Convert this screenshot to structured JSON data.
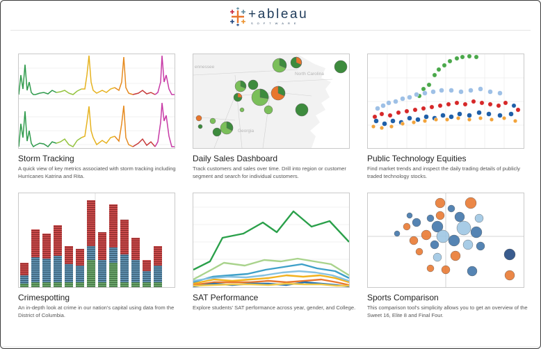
{
  "brand": {
    "name": "+ableau",
    "subtitle": "SOFTWARE",
    "colors": [
      "#e8762d",
      "#c72037",
      "#5b879b",
      "#1f457e",
      "#59879b",
      "#eb912b"
    ]
  },
  "gallery": [
    {
      "title": "Storm Tracking",
      "description": "A quick view of key metrics associated with storm tracking including Hurricanes Katrina and Rita."
    },
    {
      "title": "Daily Sales Dashboard",
      "description": "Track customers and sales over time. Drill into region or customer segment and search for individual customers.",
      "map_labels": [
        "ennessee",
        "North Carolina",
        "Georgia"
      ]
    },
    {
      "title": "Public Technology Equities",
      "description": "Find market trends and inspect the daily trading details of publicly traded technology stocks."
    },
    {
      "title": "Crimespotting",
      "description": "An in-depth look at crime in our nation's capital using data from the District of Columbia."
    },
    {
      "title": "SAT Performance",
      "description": "Explore students' SAT performance across year, gender, and College."
    },
    {
      "title": "Sports Comparison",
      "description": "This comparison tool's simplicity allows you to get an overview of the Sweet 16, Elite 8 and Final Four."
    }
  ]
}
